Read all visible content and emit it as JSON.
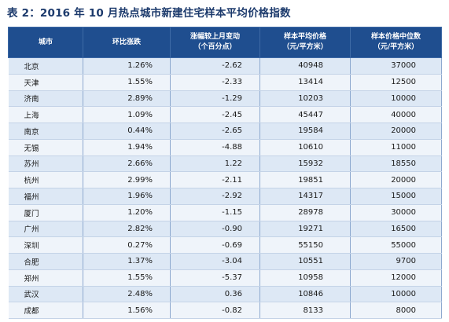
{
  "title": "表 2：2016 年 10 月热点城市新建住宅样本平均价格指数",
  "table": {
    "headers": [
      [
        "城市"
      ],
      [
        "环比涨跌"
      ],
      [
        "涨幅较上月变动",
        "（个百分点）"
      ],
      [
        "样本平均价格",
        "（元/平方米）"
      ],
      [
        "样本价格中位数",
        "（元/平方米）"
      ]
    ],
    "rows": [
      [
        "北京",
        "1.26%",
        "-2.62",
        "40948",
        "37000"
      ],
      [
        "天津",
        "1.55%",
        "-2.33",
        "13414",
        "12500"
      ],
      [
        "济南",
        "2.89%",
        "-1.29",
        "10203",
        "10000"
      ],
      [
        "上海",
        "1.09%",
        "-2.45",
        "45447",
        "40000"
      ],
      [
        "南京",
        "0.44%",
        "-2.65",
        "19584",
        "20000"
      ],
      [
        "无锡",
        "1.94%",
        "-4.88",
        "10610",
        "11000"
      ],
      [
        "苏州",
        "2.66%",
        "1.22",
        "15932",
        "18550"
      ],
      [
        "杭州",
        "2.99%",
        "-2.11",
        "19851",
        "20000"
      ],
      [
        "福州",
        "1.96%",
        "-2.92",
        "14317",
        "15000"
      ],
      [
        "厦门",
        "1.20%",
        "-1.15",
        "28978",
        "30000"
      ],
      [
        "广州",
        "2.82%",
        "-0.90",
        "19271",
        "16500"
      ],
      [
        "深圳",
        "0.27%",
        "-0.69",
        "55150",
        "55000"
      ],
      [
        "合肥",
        "1.37%",
        "-3.04",
        "10551",
        "9700"
      ],
      [
        "郑州",
        "1.55%",
        "-5.37",
        "10958",
        "12000"
      ],
      [
        "武汉",
        "2.48%",
        "0.36",
        "10846",
        "10000"
      ],
      [
        "成都",
        "1.56%",
        "-0.82",
        "8133",
        "8000"
      ]
    ]
  }
}
